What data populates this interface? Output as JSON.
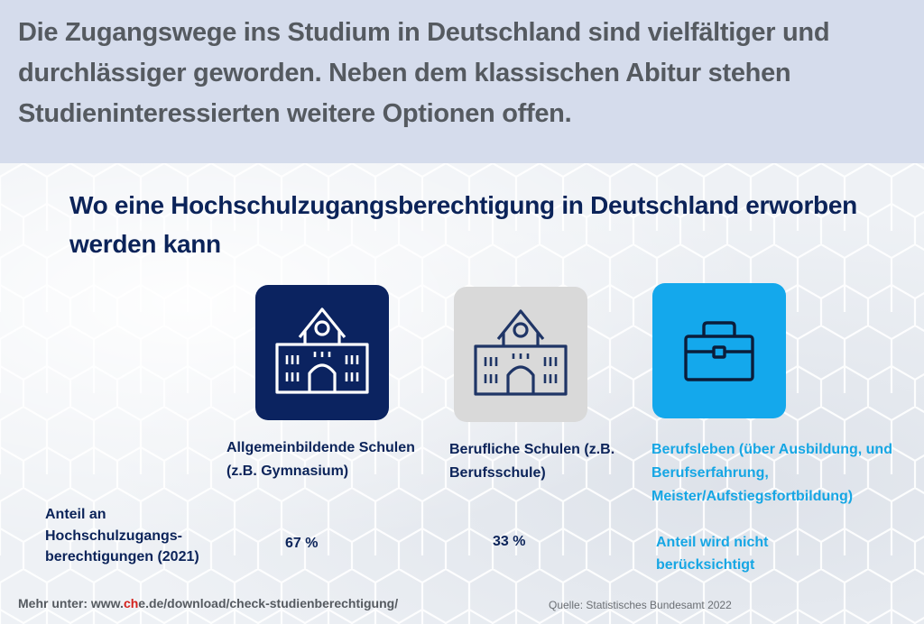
{
  "header": {
    "intro": "Die Zugangswege ins Studium in Deutschland sind vielfältiger und durchlässiger geworden. Neben dem klassischen Abitur stehen Studieninteressierten weitere Optionen offen."
  },
  "infographic": {
    "title": "Wo eine Hochschulzugangsberechtigung in Deutschland erworben werden kann",
    "row_label": "Anteil an Hochschulzugangs-berechtigungen (2021)",
    "options": [
      {
        "label": "Allgemeinbildende Schulen (z.B. Gymnasium)",
        "icon": "school-building-icon",
        "share": "67 %"
      },
      {
        "label": "Berufliche Schulen (z.B. Berufsschule)",
        "icon": "school-building-icon",
        "share": "33 %"
      },
      {
        "label": "Berufsleben (über Ausbildung, und Berufserfahrung, Meister/Aufstiegsfortbildung)",
        "icon": "briefcase-icon",
        "share": "Anteil wird nicht berücksichtigt"
      }
    ]
  },
  "footer": {
    "link_prefix": "Mehr unter: www.",
    "link_highlight": "ch",
    "link_suffix": "e.de/download/check-studienberechtigung/",
    "source": "Quelle: Statistisches Bundesamt 2022"
  },
  "colors": {
    "navy": "#0b2360",
    "light_blue": "#14a8ec",
    "grey_tile": "#d9d9d9",
    "band": "#d5dcec",
    "link_red": "#d4201b"
  }
}
